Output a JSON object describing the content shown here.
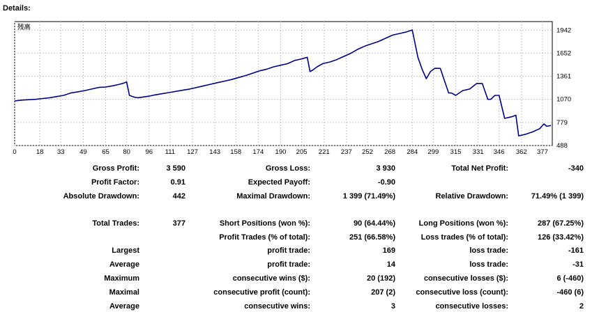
{
  "header": {
    "title": "Details:"
  },
  "chart_data": {
    "type": "line",
    "title": "",
    "corner_label": "残高",
    "xlabel": "",
    "ylabel": "",
    "grid": true,
    "line_color": "#00008b",
    "x_ticks": [
      "0",
      "18",
      "33",
      "49",
      "65",
      "80",
      "96",
      "111",
      "127",
      "143",
      "158",
      "174",
      "190",
      "205",
      "221",
      "237",
      "252",
      "268",
      "284",
      "299",
      "315",
      "331",
      "346",
      "362",
      "377"
    ],
    "y_ticks": [
      "1942",
      "1652",
      "1361",
      "1070",
      "779",
      "488"
    ],
    "xlim": [
      0,
      384
    ],
    "ylim": [
      488,
      2050
    ],
    "series": [
      {
        "x": [
          0,
          5,
          10,
          15,
          20,
          25,
          30,
          35,
          40,
          45,
          50,
          55,
          60,
          65,
          70,
          75,
          78,
          80,
          82,
          85,
          88,
          92,
          96,
          100,
          105,
          110,
          115,
          120,
          125,
          130,
          135,
          140,
          145,
          150,
          155,
          160,
          165,
          170,
          175,
          180,
          185,
          190,
          195,
          200,
          205,
          209,
          211,
          213,
          216,
          220,
          225,
          230,
          235,
          240,
          245,
          250,
          255,
          260,
          265,
          270,
          275,
          280,
          284,
          288,
          291,
          294,
          297,
          300,
          304,
          310,
          312,
          315,
          320,
          325,
          330,
          334,
          338,
          340,
          343,
          346,
          350,
          355,
          358,
          360,
          365,
          370,
          375,
          378,
          380,
          383
        ],
        "y": [
          1050,
          1060,
          1065,
          1070,
          1080,
          1090,
          1105,
          1120,
          1150,
          1165,
          1180,
          1200,
          1220,
          1225,
          1240,
          1260,
          1275,
          1290,
          1120,
          1100,
          1090,
          1100,
          1110,
          1125,
          1140,
          1155,
          1170,
          1185,
          1200,
          1220,
          1240,
          1260,
          1280,
          1300,
          1320,
          1345,
          1370,
          1400,
          1430,
          1450,
          1480,
          1500,
          1520,
          1560,
          1580,
          1600,
          1420,
          1440,
          1480,
          1520,
          1540,
          1570,
          1610,
          1650,
          1700,
          1740,
          1770,
          1800,
          1840,
          1880,
          1900,
          1920,
          1945,
          1600,
          1450,
          1330,
          1420,
          1460,
          1460,
          1150,
          1150,
          1120,
          1180,
          1200,
          1270,
          1270,
          1070,
          1070,
          1120,
          1120,
          830,
          850,
          870,
          610,
          630,
          660,
          700,
          760,
          730,
          740
        ]
      }
    ]
  },
  "stats": {
    "gross_profit": {
      "label": "Gross Profit:",
      "value": "3 590"
    },
    "gross_loss": {
      "label": "Gross Loss:",
      "value": "3 930"
    },
    "total_net_profit": {
      "label": "Total Net Profit:",
      "value": "-340"
    },
    "profit_factor": {
      "label": "Profit Factor:",
      "value": "0.91"
    },
    "expected_payoff": {
      "label": "Expected Payoff:",
      "value": "-0.90"
    },
    "absolute_drawdown": {
      "label": "Absolute Drawdown:",
      "value": "442"
    },
    "maximal_drawdown": {
      "label": "Maximal Drawdown:",
      "value": "1 399 (71.49%)"
    },
    "relative_drawdown": {
      "label": "Relative Drawdown:",
      "value": "71.49% (1 399)"
    },
    "total_trades": {
      "label": "Total Trades:",
      "value": "377"
    },
    "short_positions": {
      "label": "Short Positions (won %):",
      "value": "90 (64.44%)"
    },
    "long_positions": {
      "label": "Long Positions (won %):",
      "value": "287 (67.25%)"
    },
    "profit_trades": {
      "label": "Profit Trades (% of total):",
      "value": "251 (66.58%)"
    },
    "loss_trades": {
      "label": "Loss trades (% of total):",
      "value": "126 (33.42%)"
    },
    "largest": {
      "label": "Largest",
      "profit_label": "profit trade:",
      "profit_value": "169",
      "loss_label": "loss trade:",
      "loss_value": "-161"
    },
    "average": {
      "label": "Average",
      "profit_label": "profit trade:",
      "profit_value": "14",
      "loss_label": "loss trade:",
      "loss_value": "-31"
    },
    "maximum": {
      "label": "Maximum",
      "profit_label": "consecutive wins ($):",
      "profit_value": "20 (192)",
      "loss_label": "consecutive losses ($):",
      "loss_value": "6 (-460)"
    },
    "maximal": {
      "label": "Maximal",
      "profit_label": "consecutive profit (count):",
      "profit_value": "207 (2)",
      "loss_label": "consecutive loss (count):",
      "loss_value": "-460 (6)"
    },
    "average_consec": {
      "label": "Average",
      "profit_label": "consecutive wins:",
      "profit_value": "3",
      "loss_label": "consecutive losses:",
      "loss_value": "2"
    }
  }
}
